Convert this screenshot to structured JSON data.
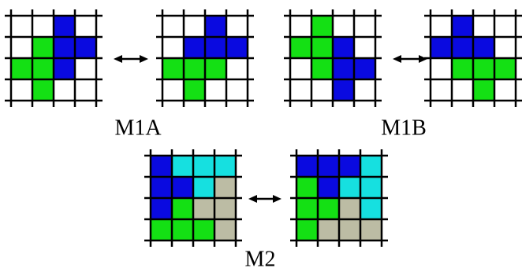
{
  "labels": [
    "M1A",
    "M1B",
    "M2"
  ]
}
